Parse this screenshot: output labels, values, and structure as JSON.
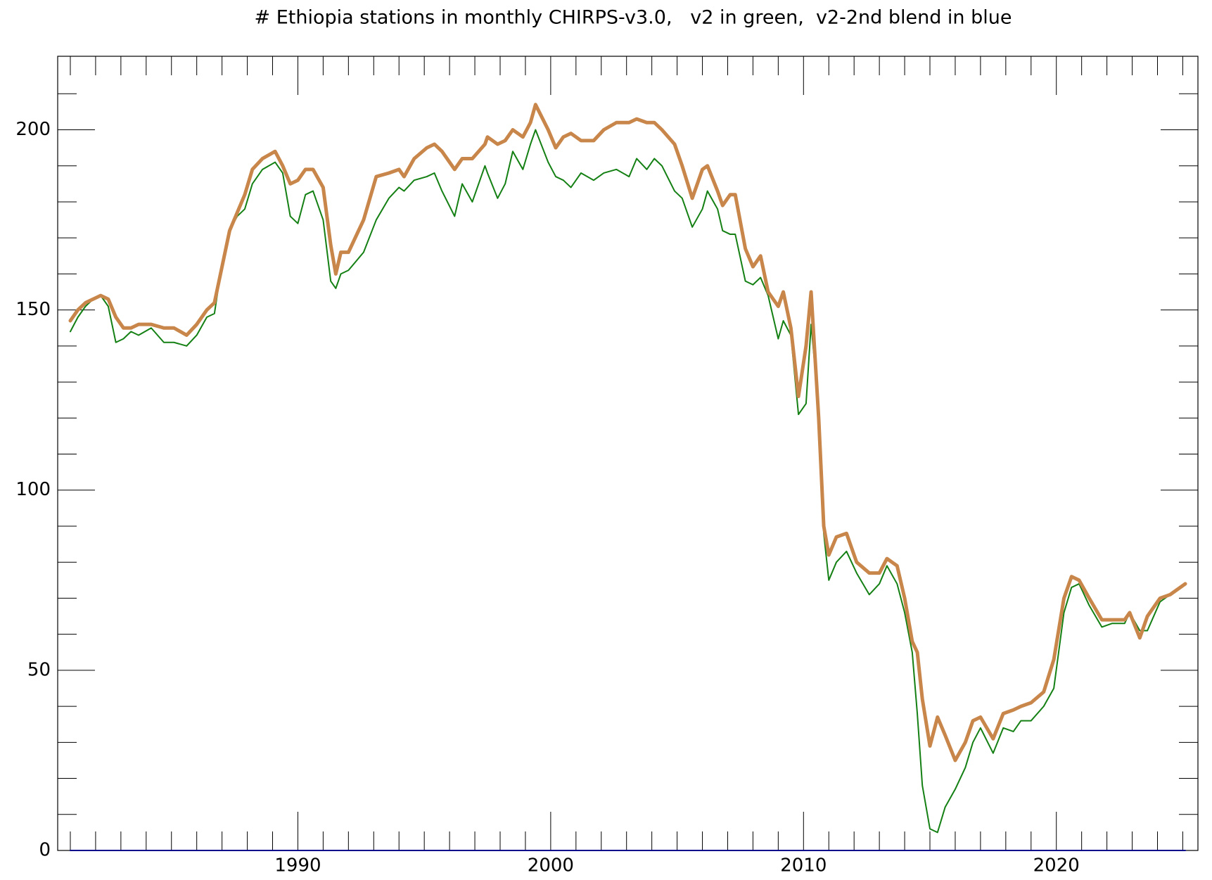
{
  "chart_data": {
    "type": "line",
    "title": "# Ethiopia stations in monthly CHIRPS-v3.0,   v2 in green,  v2-2nd blend in blue",
    "x": [
      1981.0,
      1981.3,
      1981.6,
      1981.9,
      1982.2,
      1982.5,
      1982.8,
      1983.1,
      1983.4,
      1983.7,
      1984.2,
      1984.7,
      1985.1,
      1985.6,
      1986.0,
      1986.4,
      1986.7,
      1987.0,
      1987.3,
      1987.6,
      1987.9,
      1988.2,
      1988.6,
      1989.1,
      1989.4,
      1989.7,
      1990.0,
      1990.3,
      1990.6,
      1991.0,
      1991.3,
      1991.5,
      1991.7,
      1992.0,
      1992.6,
      1993.1,
      1993.6,
      1994.0,
      1994.2,
      1994.6,
      1995.1,
      1995.4,
      1995.7,
      1996.2,
      1996.5,
      1996.9,
      1997.4,
      1997.5,
      1997.9,
      1998.2,
      1998.5,
      1998.9,
      1999.2,
      1999.4,
      1999.9,
      2000.2,
      2000.5,
      2000.8,
      2001.2,
      2001.7,
      2002.1,
      2002.6,
      2003.1,
      2003.4,
      2003.8,
      2004.1,
      2004.4,
      2004.9,
      2005.2,
      2005.6,
      2006.0,
      2006.2,
      2006.6,
      2006.8,
      2007.1,
      2007.3,
      2007.7,
      2008.0,
      2008.3,
      2008.6,
      2009.0,
      2009.2,
      2009.5,
      2009.8,
      2010.1,
      2010.3,
      2010.6,
      2010.8,
      2011.0,
      2011.3,
      2011.7,
      2012.1,
      2012.6,
      2013.0,
      2013.3,
      2013.7,
      2014.0,
      2014.3,
      2014.5,
      2014.7,
      2015.0,
      2015.3,
      2015.6,
      2016.0,
      2016.4,
      2016.7,
      2017.0,
      2017.5,
      2017.9,
      2018.3,
      2018.6,
      2019.0,
      2019.5,
      2019.9,
      2020.3,
      2020.6,
      2020.9,
      2021.3,
      2021.8,
      2022.2,
      2022.7,
      2022.9,
      2023.3,
      2023.6,
      2024.1,
      2024.5,
      2025.1
    ],
    "series": [
      {
        "name": "v2-2nd blend",
        "color": "#00008b",
        "linewidth": 2,
        "values": [
          0,
          0,
          0,
          0,
          0,
          0,
          0,
          0,
          0,
          0,
          0,
          0,
          0,
          0,
          0,
          0,
          0,
          0,
          0,
          0,
          0,
          0,
          0,
          0,
          0,
          0,
          0,
          0,
          0,
          0,
          0,
          0,
          0,
          0,
          0,
          0,
          0,
          0,
          0,
          0,
          0,
          0,
          0,
          0,
          0,
          0,
          0,
          0,
          0,
          0,
          0,
          0,
          0,
          0,
          0,
          0,
          0,
          0,
          0,
          0,
          0,
          0,
          0,
          0,
          0,
          0,
          0,
          0,
          0,
          0,
          0,
          0,
          0,
          0,
          0,
          0,
          0,
          0,
          0,
          0,
          0,
          0,
          0,
          0,
          0,
          0,
          0,
          0,
          0,
          0,
          0,
          0,
          0,
          0,
          0,
          0,
          0,
          0,
          0,
          0,
          0,
          0,
          0,
          0,
          0,
          0,
          0,
          0,
          0,
          0,
          0,
          0,
          0,
          0,
          0,
          0,
          0,
          0,
          0,
          0,
          0,
          0,
          0,
          0,
          0,
          0,
          0
        ]
      },
      {
        "name": "v2",
        "color": "#148014",
        "linewidth": 2,
        "values": [
          144,
          148,
          151,
          153,
          154,
          151,
          141,
          142,
          144,
          143,
          145,
          141,
          141,
          140,
          143,
          148,
          149,
          163,
          172,
          176,
          178,
          185,
          189,
          191,
          188,
          176,
          174,
          182,
          183,
          175,
          158,
          156,
          160,
          161,
          166,
          175,
          181,
          184,
          183,
          186,
          187,
          188,
          183,
          176,
          185,
          180,
          190,
          188,
          181,
          185,
          194,
          189,
          196,
          200,
          191,
          187,
          186,
          184,
          188,
          186,
          188,
          189,
          187,
          192,
          189,
          192,
          190,
          183,
          181,
          173,
          178,
          183,
          178,
          172,
          171,
          171,
          158,
          157,
          159,
          154,
          142,
          147,
          143,
          121,
          124,
          146,
          123,
          88,
          75,
          80,
          83,
          77,
          71,
          74,
          79,
          74,
          66,
          55,
          38,
          18,
          6,
          5,
          12,
          17,
          23,
          30,
          34,
          27,
          34,
          33,
          36,
          36,
          40,
          45,
          66,
          73,
          74,
          68,
          62,
          63,
          63,
          66,
          61,
          61,
          69,
          71,
          74
        ]
      },
      {
        "name": "v3.0",
        "color": "#c8864a",
        "linewidth": 5,
        "values": [
          147,
          150,
          152,
          153,
          154,
          153,
          148,
          145,
          145,
          146,
          146,
          145,
          145,
          143,
          146,
          150,
          152,
          162,
          172,
          177,
          182,
          189,
          192,
          194,
          190,
          185,
          186,
          189,
          189,
          184,
          168,
          160,
          166,
          166,
          175,
          187,
          188,
          189,
          187,
          192,
          195,
          196,
          194,
          189,
          192,
          192,
          196,
          198,
          196,
          197,
          200,
          198,
          202,
          207,
          200,
          195,
          198,
          199,
          197,
          197,
          200,
          202,
          202,
          203,
          202,
          202,
          200,
          196,
          190,
          181,
          189,
          190,
          183,
          179,
          182,
          182,
          167,
          162,
          165,
          155,
          151,
          155,
          145,
          126,
          140,
          155,
          120,
          90,
          82,
          87,
          88,
          80,
          77,
          77,
          81,
          79,
          70,
          58,
          55,
          42,
          29,
          37,
          32,
          25,
          30,
          36,
          37,
          31,
          38,
          39,
          40,
          41,
          44,
          53,
          70,
          76,
          75,
          70,
          64,
          64,
          64,
          66,
          59,
          65,
          70,
          71,
          74
        ]
      }
    ],
    "xlim": [
      1980.5,
      2025.6
    ],
    "ylim": [
      0,
      220.4
    ],
    "xticks": [
      1990,
      2000,
      2010,
      2020
    ],
    "yticks": [
      0,
      50,
      100,
      150,
      200
    ],
    "xminorticks": [
      1981,
      1982,
      1983,
      1984,
      1985,
      1986,
      1987,
      1988,
      1989,
      1991,
      1992,
      1993,
      1994,
      1995,
      1996,
      1997,
      1998,
      1999,
      2001,
      2002,
      2003,
      2004,
      2005,
      2006,
      2007,
      2008,
      2009,
      2011,
      2012,
      2013,
      2014,
      2015,
      2016,
      2017,
      2018,
      2019,
      2021,
      2022,
      2023,
      2024,
      2025
    ],
    "yminorticks": [
      10,
      20,
      30,
      40,
      60,
      70,
      80,
      90,
      110,
      120,
      130,
      140,
      160,
      170,
      180,
      190,
      210
    ]
  }
}
